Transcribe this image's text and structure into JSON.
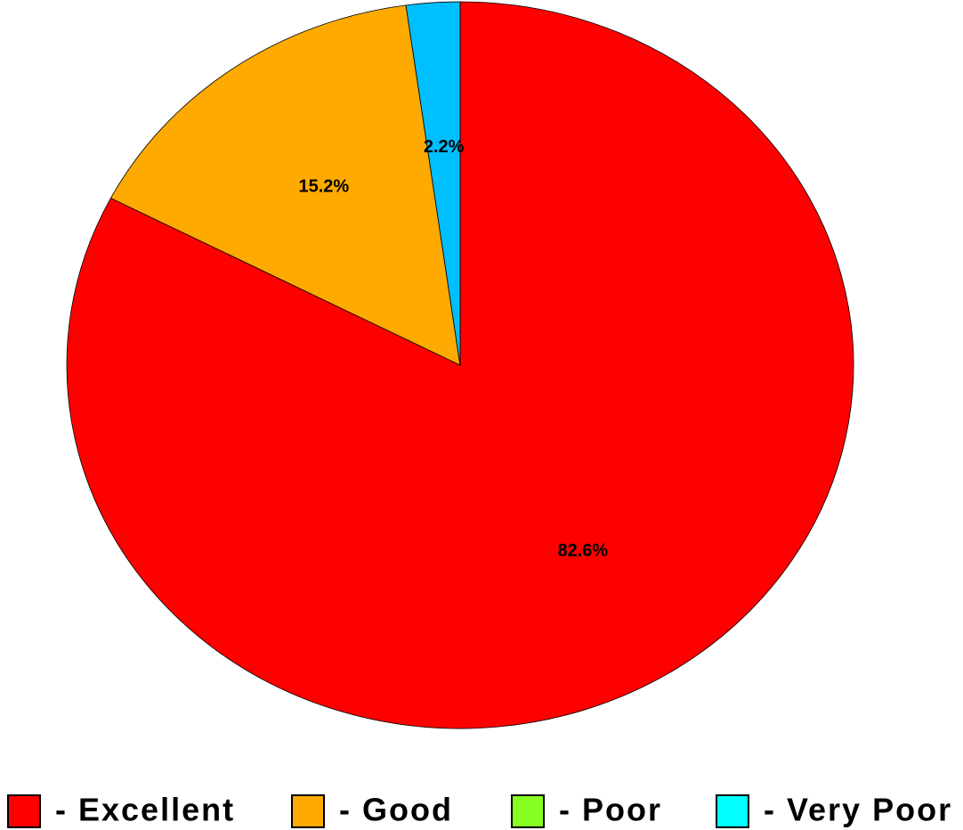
{
  "chart_data": {
    "type": "pie",
    "categories": [
      "- Excellent",
      "- Good",
      "- Poor",
      "- Very Poor"
    ],
    "values": [
      82.6,
      15.2,
      0,
      2.2
    ],
    "value_labels": [
      "82.6%",
      "15.2%",
      null,
      "2.2%"
    ],
    "colors": [
      "#ff0000",
      "#ffaa00",
      "#88ff22",
      "#00bfff"
    ],
    "legend_colors": [
      "#ff0000",
      "#ffaa00",
      "#88ff22",
      "#00ffff"
    ],
    "legend": "bottom"
  }
}
